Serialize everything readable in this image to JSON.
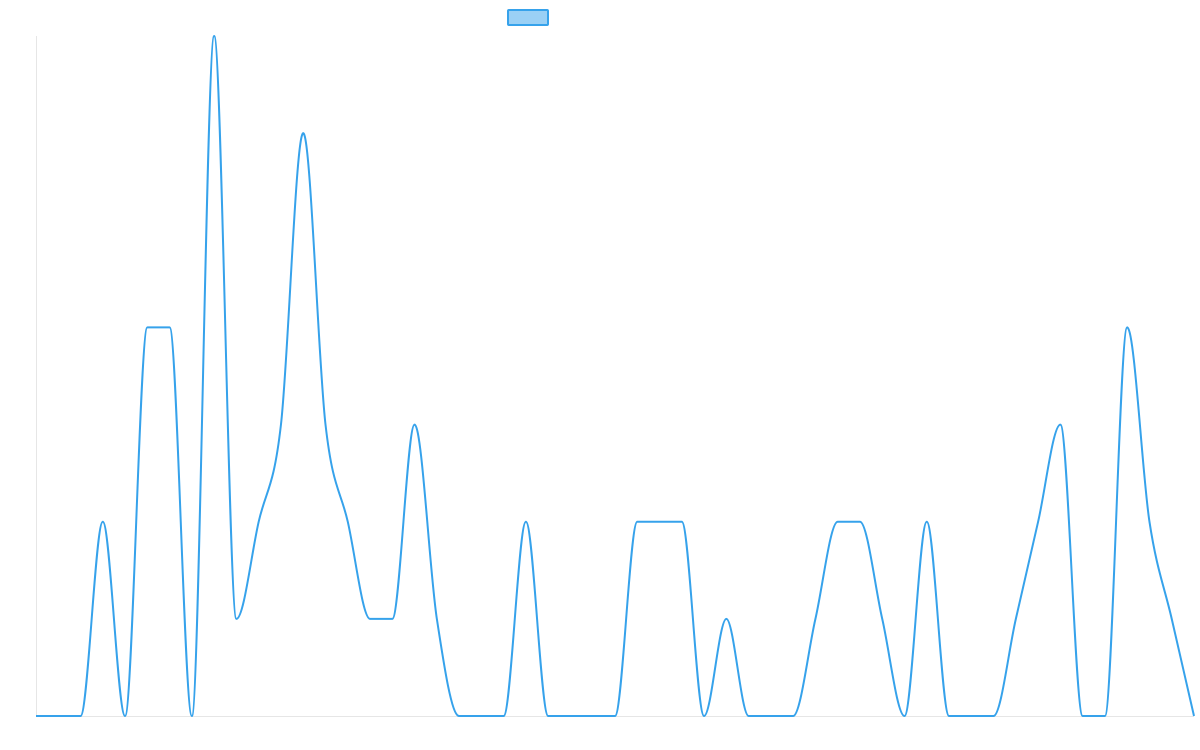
{
  "chart_data": {
    "type": "line",
    "title": "",
    "xlabel": "",
    "ylabel": "",
    "legend": {
      "placement": "top-center",
      "label": ""
    },
    "grid": false,
    "ylim": [
      0,
      7
    ],
    "x": [
      0,
      1,
      2,
      3,
      4,
      5,
      6,
      7,
      8,
      9,
      10,
      11,
      12,
      13,
      14,
      15,
      16,
      17,
      18,
      19,
      20,
      21,
      22,
      23,
      24,
      25,
      26,
      27,
      28,
      29,
      30,
      31,
      32,
      33,
      34,
      35,
      36,
      37,
      38,
      39,
      40,
      41,
      42,
      43,
      44,
      45,
      46,
      47,
      48,
      49,
      50,
      51,
      52
    ],
    "series": [
      {
        "color": "#36a2eb",
        "fill": "#9ad0f5",
        "values": [
          0,
          0,
          0,
          2,
          0,
          4,
          4,
          0,
          7,
          1,
          2,
          3,
          6,
          3,
          2,
          1,
          1,
          3,
          1,
          0,
          0,
          0,
          2,
          0,
          0,
          0,
          0,
          2,
          2,
          2,
          0,
          1,
          0,
          0,
          0,
          1,
          2,
          2,
          1,
          0,
          2,
          0,
          0,
          0,
          1,
          2,
          3,
          0,
          0,
          4,
          2,
          1,
          0
        ]
      }
    ]
  }
}
